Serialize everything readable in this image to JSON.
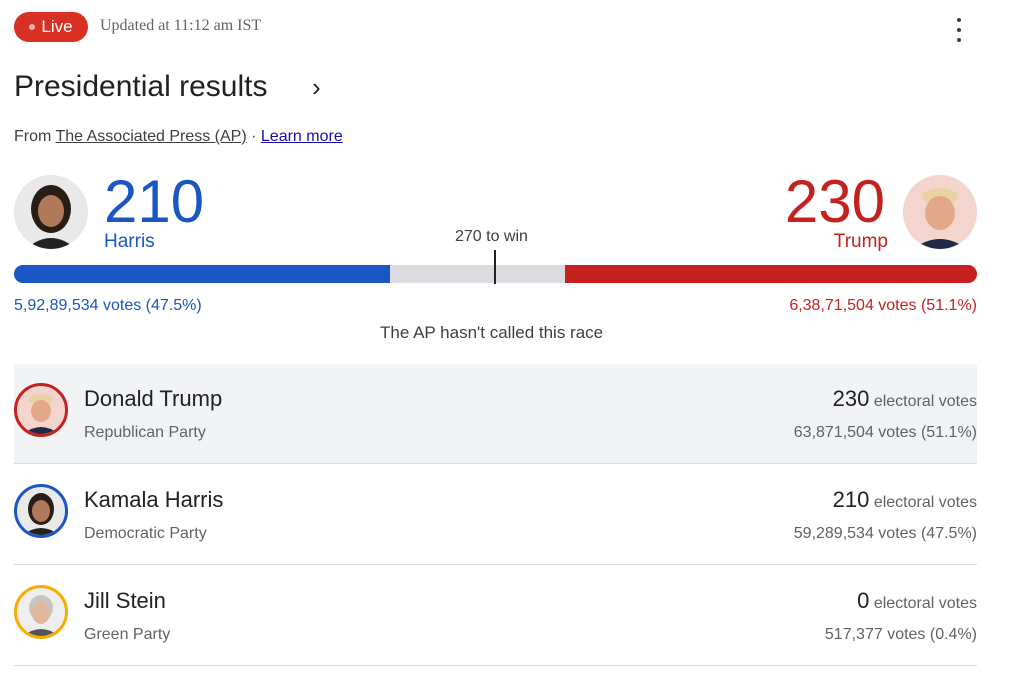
{
  "header": {
    "live_label": "Live",
    "updated": "Updated at 11:12 am IST",
    "menu_icon": "more-vert-icon"
  },
  "title": "Presidential results",
  "source": {
    "prefix": "From",
    "ap": "The Associated Press (AP)",
    "separator": "·",
    "learn_more": "Learn more"
  },
  "scoreboard": {
    "threshold_label": "270 to win",
    "threshold": 270,
    "total_electoral": 538,
    "status": "The AP hasn't called this race",
    "left": {
      "name": "Harris",
      "electoral": "210",
      "electoral_value": 210,
      "votes": "5,92,89,534 votes (47.5%)",
      "color": "#1a56c4"
    },
    "right": {
      "name": "Trump",
      "electoral": "230",
      "electoral_value": 230,
      "votes": "6,38,71,504 votes (51.1%)",
      "color": "#c5221f"
    }
  },
  "candidates": [
    {
      "name": "Donald Trump",
      "party": "Republican Party",
      "electoral": "230",
      "electoral_label": "electoral votes",
      "votes": "63,871,504 votes (51.1%)",
      "ring_color": "#c5221f"
    },
    {
      "name": "Kamala Harris",
      "party": "Democratic Party",
      "electoral": "210",
      "electoral_label": "electoral votes",
      "votes": "59,289,534 votes (47.5%)",
      "ring_color": "#1a56c4"
    },
    {
      "name": "Jill Stein",
      "party": "Green Party",
      "electoral": "0",
      "electoral_label": "electoral votes",
      "votes": "517,377 votes (0.4%)",
      "ring_color": "#f9ab00"
    }
  ]
}
